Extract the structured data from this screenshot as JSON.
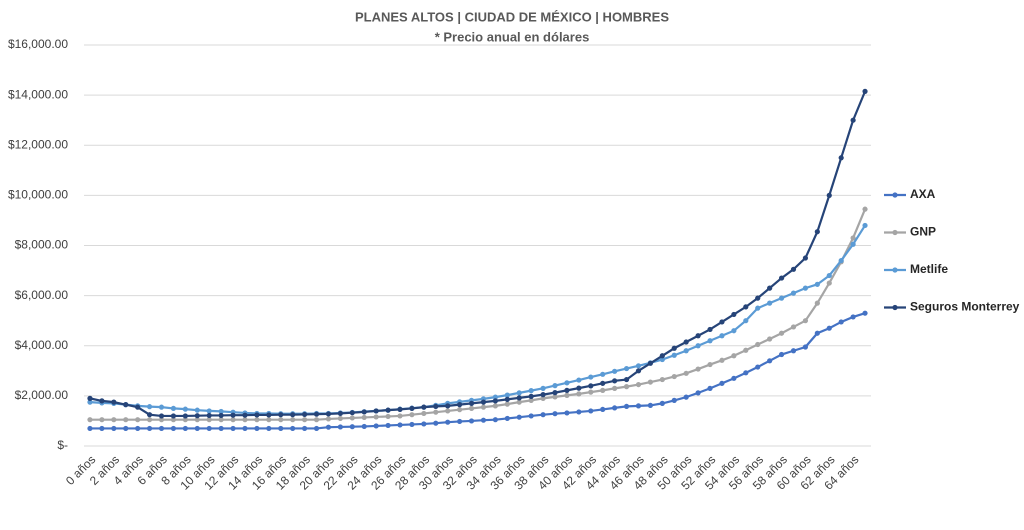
{
  "chart_data": {
    "type": "line",
    "title": "PLANES ALTOS | CIUDAD DE MÉXICO | HOMBRES",
    "subtitle": "* Precio anual en dólares",
    "categories": [
      "0 años",
      null,
      "2 años",
      null,
      "4 años",
      null,
      "6 años",
      null,
      "8 años",
      null,
      "10 años",
      null,
      "12 años",
      null,
      "14 años",
      null,
      "16 años",
      null,
      "18 años",
      null,
      "20 años",
      null,
      "22 años",
      null,
      "24 años",
      null,
      "26 años",
      null,
      "28 años",
      null,
      "30 años",
      null,
      "32 años",
      null,
      "34 años",
      null,
      "36 años",
      null,
      "38 años",
      null,
      "40 años",
      null,
      "42 años",
      null,
      "44 años",
      null,
      "46 años",
      null,
      "48 años",
      null,
      "50 años",
      null,
      "52 años",
      null,
      "54 años",
      null,
      "56 años",
      null,
      "58 años",
      null,
      "60 años",
      null,
      "62 años",
      null,
      "64 años",
      null
    ],
    "series": [
      {
        "name": "AXA",
        "color": "#4472c4",
        "values": [
          700,
          700,
          700,
          700,
          700,
          700,
          700,
          700,
          700,
          700,
          700,
          700,
          700,
          700,
          700,
          700,
          700,
          700,
          700,
          700,
          750,
          760,
          770,
          780,
          800,
          820,
          840,
          860,
          880,
          910,
          950,
          980,
          1000,
          1030,
          1050,
          1100,
          1150,
          1200,
          1250,
          1290,
          1320,
          1360,
          1400,
          1460,
          1520,
          1580,
          1600,
          1620,
          1700,
          1820,
          1950,
          2120,
          2300,
          2500,
          2700,
          2920,
          3150,
          3400,
          3650,
          3800,
          3950,
          4500,
          4700,
          4950,
          5150,
          5300
        ]
      },
      {
        "name": "GNP",
        "color": "#a5a5a5",
        "values": [
          1050,
          1050,
          1050,
          1050,
          1050,
          1050,
          1050,
          1050,
          1050,
          1050,
          1050,
          1050,
          1050,
          1050,
          1050,
          1050,
          1050,
          1050,
          1050,
          1050,
          1080,
          1100,
          1120,
          1140,
          1160,
          1180,
          1200,
          1250,
          1300,
          1350,
          1400,
          1450,
          1500,
          1550,
          1600,
          1670,
          1750,
          1820,
          1900,
          1960,
          2020,
          2080,
          2150,
          2220,
          2300,
          2370,
          2450,
          2550,
          2650,
          2770,
          2900,
          3070,
          3250,
          3420,
          3600,
          3820,
          4050,
          4270,
          4500,
          4750,
          5000,
          5700,
          6500,
          7350,
          8300,
          9450
        ]
      },
      {
        "name": "Metlife",
        "color": "#5b9bd5",
        "values": [
          1750,
          1720,
          1700,
          1650,
          1600,
          1570,
          1550,
          1500,
          1470,
          1430,
          1400,
          1380,
          1350,
          1320,
          1300,
          1300,
          1290,
          1290,
          1290,
          1300,
          1300,
          1320,
          1340,
          1370,
          1400,
          1430,
          1470,
          1510,
          1550,
          1620,
          1700,
          1760,
          1820,
          1880,
          1950,
          2030,
          2120,
          2210,
          2300,
          2410,
          2520,
          2630,
          2750,
          2860,
          2980,
          3090,
          3200,
          3320,
          3450,
          3620,
          3800,
          4000,
          4200,
          4400,
          4600,
          5000,
          5500,
          5700,
          5900,
          6100,
          6300,
          6450,
          6800,
          7400,
          8050,
          8800
        ]
      },
      {
        "name": "Seguros Monterrey",
        "color": "#264478",
        "values": [
          1900,
          1800,
          1750,
          1650,
          1550,
          1250,
          1200,
          1200,
          1200,
          1210,
          1220,
          1220,
          1230,
          1230,
          1240,
          1240,
          1250,
          1250,
          1260,
          1270,
          1280,
          1300,
          1330,
          1360,
          1400,
          1430,
          1460,
          1500,
          1550,
          1580,
          1600,
          1650,
          1700,
          1750,
          1800,
          1860,
          1920,
          1980,
          2050,
          2130,
          2220,
          2310,
          2400,
          2500,
          2600,
          2650,
          3000,
          3300,
          3600,
          3900,
          4150,
          4400,
          4650,
          4950,
          5250,
          5550,
          5900,
          6300,
          6700,
          7050,
          7500,
          8550,
          10000,
          11500,
          13000,
          14150
        ]
      }
    ],
    "ylim": [
      0,
      16000
    ],
    "yticks": [
      {
        "value": 0,
        "label": "$-"
      },
      {
        "value": 2000,
        "label": "$2,000.00"
      },
      {
        "value": 4000,
        "label": "$4,000.00"
      },
      {
        "value": 6000,
        "label": "$6,000.00"
      },
      {
        "value": 8000,
        "label": "$8,000.00"
      },
      {
        "value": 10000,
        "label": "$10,000.00"
      },
      {
        "value": 12000,
        "label": "$12,000.00"
      },
      {
        "value": 14000,
        "label": "$14,000.00"
      },
      {
        "value": 16000,
        "label": "$16,000.00"
      }
    ],
    "grid": true,
    "legend": "right"
  }
}
